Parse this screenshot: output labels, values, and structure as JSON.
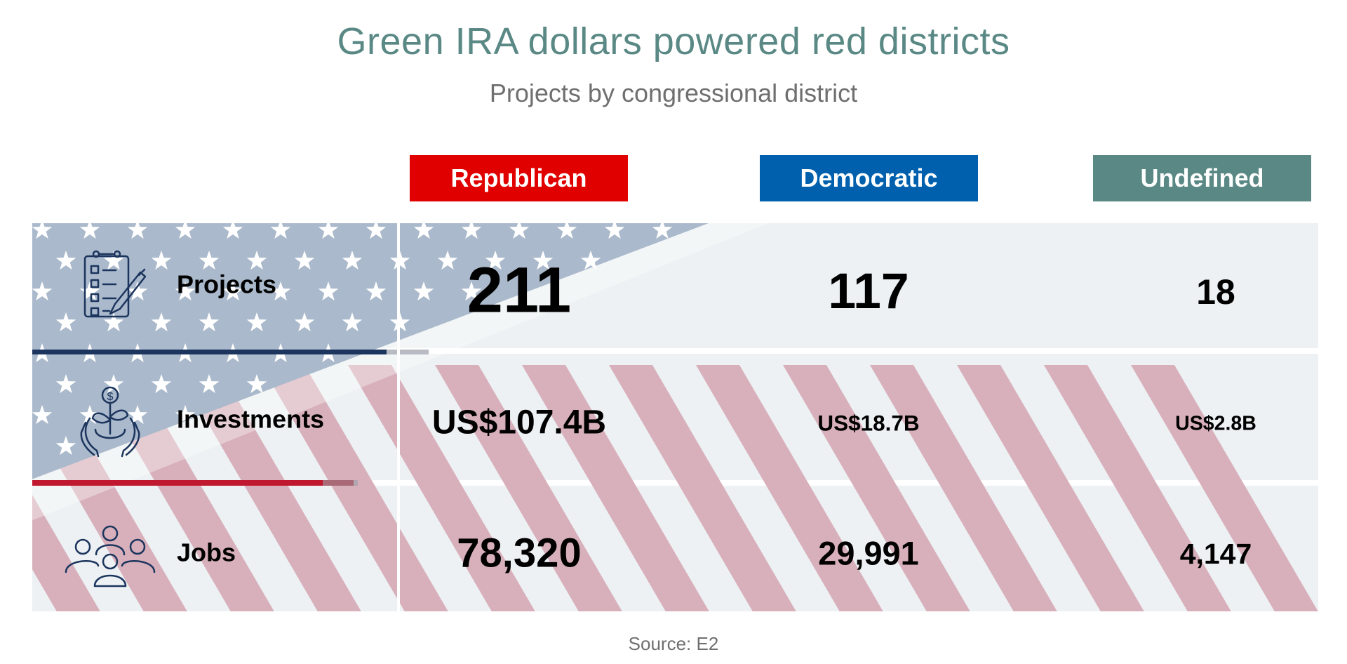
{
  "title": "Green IRA dollars powered red districts",
  "subtitle": "Projects by congressional district",
  "source": "Source: E2",
  "colors": {
    "republican": "#e00000",
    "democratic": "#0060ad",
    "undefined": "#5a8985",
    "cell_bg": "#edf1f3",
    "flag_blue": "#aab9cb",
    "flag_red": "#d8b0bb",
    "flag_line_blue": "#1c355e",
    "flag_line_red": "#c0182e",
    "icon": "#1c355e"
  },
  "chart_data": {
    "type": "table",
    "title": "Green IRA dollars powered red districts",
    "subtitle": "Projects by congressional district",
    "columns": [
      "Republican",
      "Democratic",
      "Undefined"
    ],
    "rows": [
      {
        "label": "Projects",
        "icon": "clipboard-checklist-icon",
        "values": [
          211,
          117,
          18
        ],
        "display": [
          "211",
          "117",
          "18"
        ]
      },
      {
        "label": "Investments",
        "icon": "money-plant-hands-icon",
        "unit": "US$ billions",
        "values": [
          107.4,
          18.7,
          2.8
        ],
        "display": [
          "US$107.4B",
          "US$18.7B",
          "US$2.8B"
        ]
      },
      {
        "label": "Jobs",
        "icon": "people-group-icon",
        "values": [
          78320,
          29991,
          4147
        ],
        "display": [
          "78,320",
          "29,991",
          "4,147"
        ]
      }
    ]
  }
}
